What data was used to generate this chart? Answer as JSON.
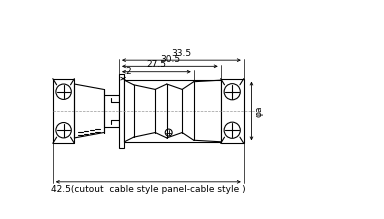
{
  "bg_color": "#ffffff",
  "line_color": "#000000",
  "fig_width": 3.84,
  "fig_height": 2.19,
  "dpi": 100,
  "dim_33_5": "33.5",
  "dim_30_5": "30.5",
  "dim_27_5": "27.5",
  "dim_2": "2",
  "phi_a": "φa",
  "bottom_label": "42.5(cutout  cable style panel-cable style )"
}
